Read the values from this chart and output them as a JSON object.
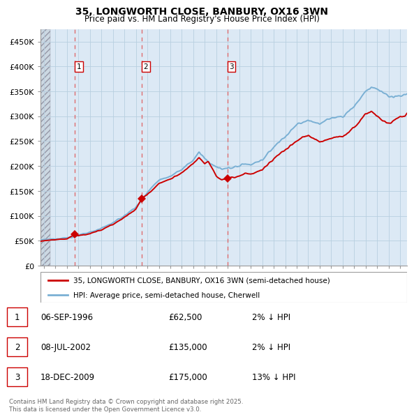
{
  "title": "35, LONGWORTH CLOSE, BANBURY, OX16 3WN",
  "subtitle": "Price paid vs. HM Land Registry's House Price Index (HPI)",
  "ylim": [
    0,
    475000
  ],
  "yticks": [
    0,
    50000,
    100000,
    150000,
    200000,
    250000,
    300000,
    350000,
    400000,
    450000
  ],
  "ytick_labels": [
    "£0",
    "£50K",
    "£100K",
    "£150K",
    "£200K",
    "£250K",
    "£300K",
    "£350K",
    "£400K",
    "£450K"
  ],
  "xlim_start": 1993.7,
  "xlim_end": 2025.6,
  "sale_dates": [
    1996.68,
    2002.52,
    2009.97
  ],
  "sale_prices": [
    62500,
    135000,
    175000
  ],
  "sale_labels": [
    "1",
    "2",
    "3"
  ],
  "sale_info": [
    {
      "label": "1",
      "date": "06-SEP-1996",
      "price": "£62,500",
      "hpi": "2% ↓ HPI"
    },
    {
      "label": "2",
      "date": "08-JUL-2002",
      "price": "£135,000",
      "hpi": "2% ↓ HPI"
    },
    {
      "label": "3",
      "date": "18-DEC-2009",
      "price": "£175,000",
      "hpi": "13% ↓ HPI"
    }
  ],
  "legend_line1": "35, LONGWORTH CLOSE, BANBURY, OX16 3WN (semi-detached house)",
  "legend_line2": "HPI: Average price, semi-detached house, Cherwell",
  "footer": "Contains HM Land Registry data © Crown copyright and database right 2025.\nThis data is licensed under the Open Government Licence v3.0.",
  "hpi_color": "#7ab0d4",
  "price_color": "#cc0000",
  "dashed_color": "#e06060",
  "chart_bg": "#dce9f5",
  "hatch_color": "#c0c8d0",
  "grid_color": "#b8cfe0"
}
